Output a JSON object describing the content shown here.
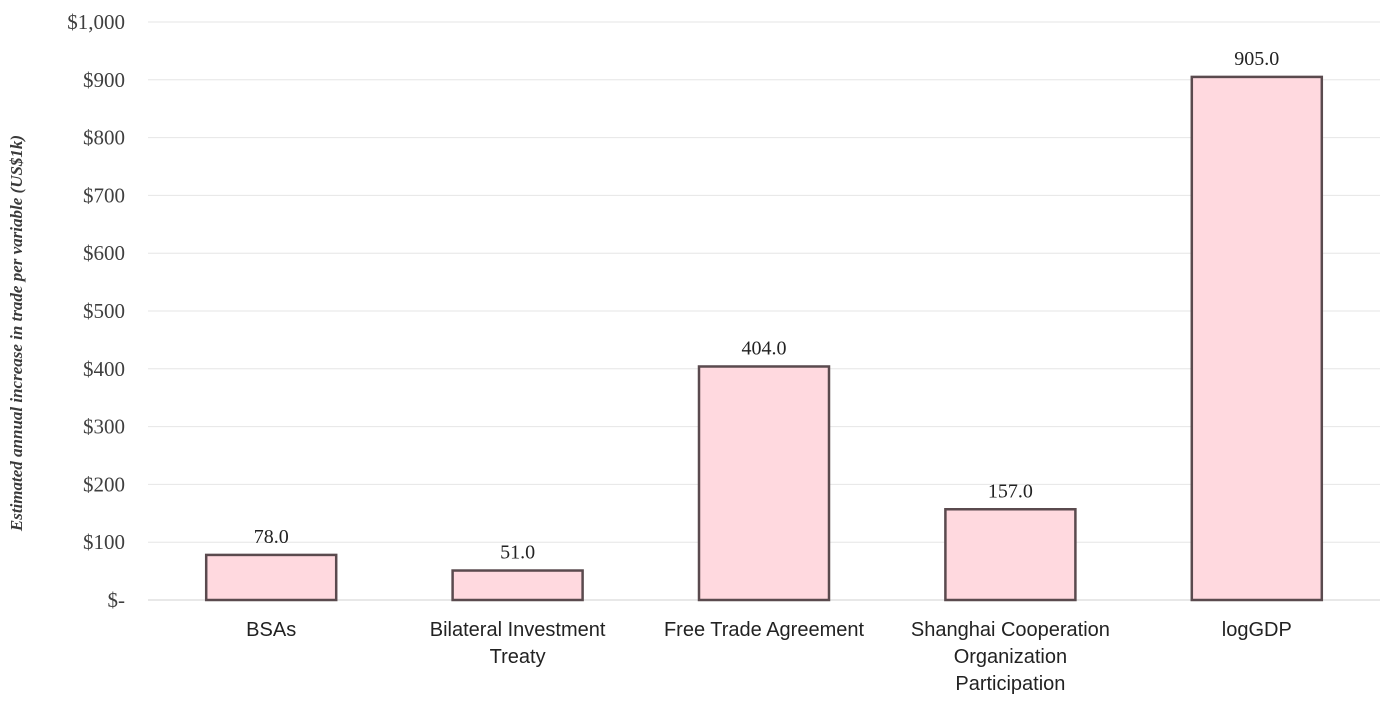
{
  "chart_data": {
    "type": "bar",
    "title": "",
    "xlabel": "",
    "ylabel": "Estimated annual increase in trade per variable (US$1k)",
    "categories": [
      [
        "BSAs"
      ],
      [
        "Bilateral Investment",
        "Treaty"
      ],
      [
        "Free Trade Agreement"
      ],
      [
        "Shanghai Cooperation",
        "Organization",
        "Participation"
      ],
      [
        "logGDP"
      ]
    ],
    "values": [
      78.0,
      51.0,
      404.0,
      157.0,
      905.0
    ],
    "data_labels": [
      "78.0",
      "51.0",
      "404.0",
      "157.0",
      "905.0"
    ],
    "ylim": [
      0,
      1000
    ],
    "yticks": [
      0,
      100,
      200,
      300,
      400,
      500,
      600,
      700,
      800,
      900,
      1000
    ],
    "ytick_labels": [
      "$-",
      "$100",
      "$200",
      "$300",
      "$400",
      "$500",
      "$600",
      "$700",
      "$800",
      "$900",
      "$1,000"
    ],
    "grid": true,
    "legend": "none",
    "colors": {
      "bar_fill": "#ffd9df",
      "bar_stroke": "#5a4a4e",
      "grid": "#e6e6e6",
      "axis": "#d0d0d0"
    }
  }
}
